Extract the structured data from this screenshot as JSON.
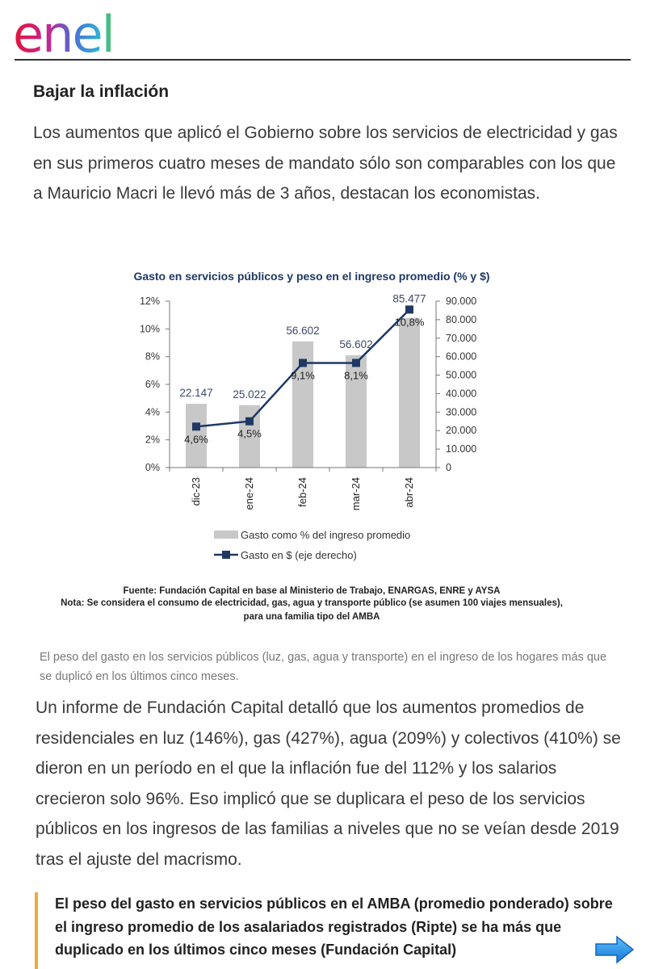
{
  "brand": {
    "logo_text": "enel"
  },
  "article": {
    "heading": "Bajar la inflación",
    "lead": "Los aumentos que aplicó el Gobierno sobre los servicios de electricidad y gas en sus primeros cuatro meses de mandato sólo son comparables con los que a Mauricio Macri le llevó más de 3 años, destacan los economistas.",
    "caption": "El peso del gasto en los servicios públicos (luz, gas, agua y transporte) en el ingreso de los hogares más que se duplicó en los últimos cinco meses.",
    "body": "Un informe de Fundación Capital detalló que los aumentos promedios de residenciales en luz (146%), gas (427%), agua (209%) y colectivos (410%) se dieron en un período en el que la inflación fue del 112% y los salarios crecieron solo 96%. Eso implicó que se duplicara el peso de los servicios públicos en los ingresos de las familias a niveles que no se veían desde 2019 tras el ajuste del macrismo.",
    "quote": "El peso del gasto en servicios públicos en el AMBA (promedio ponderado) sobre el ingreso promedio de los asalariados registrados (Ripte) se ha más que duplicado en los últimos cinco meses (Fundación Capital)"
  },
  "chart_data": {
    "type": "bar",
    "title": "Gasto en servicios públicos y peso en el ingreso promedio (% y $)",
    "categories": [
      "dic-23",
      "ene-24",
      "feb-24",
      "mar-24",
      "abr-24"
    ],
    "series": [
      {
        "name": "Gasto como % del ingreso promedio",
        "type": "bar",
        "axis": "left",
        "values": [
          4.6,
          4.5,
          9.1,
          8.1,
          10.8
        ],
        "labels": [
          "4,6%",
          "4,5%",
          "9,1%",
          "8,1%",
          "10,8%"
        ]
      },
      {
        "name": "Gasto en $ (eje derecho)",
        "type": "line",
        "axis": "right",
        "values": [
          22147,
          25022,
          56602,
          56602,
          85477
        ],
        "labels": [
          "22.147",
          "25.022",
          "56.602",
          "56.602",
          "85.477"
        ]
      }
    ],
    "y_left": {
      "min": 0,
      "max": 12,
      "ticks": [
        0,
        2,
        4,
        6,
        8,
        10,
        12
      ],
      "tick_labels": [
        "0%",
        "2%",
        "4%",
        "6%",
        "8%",
        "10%",
        "12%"
      ]
    },
    "y_right": {
      "min": 0,
      "max": 90000,
      "ticks": [
        0,
        10000,
        20000,
        30000,
        40000,
        50000,
        60000,
        70000,
        80000,
        90000
      ],
      "tick_labels": [
        "0",
        "10.000",
        "20.000",
        "30.000",
        "40.000",
        "50.000",
        "60.000",
        "70.000",
        "80.000",
        "90.000"
      ]
    },
    "colors": {
      "bar": "#c8c8c8",
      "line": "#1f3864",
      "title": "#1f3864",
      "label": "#3a4a6b"
    },
    "source": "Fuente: Fundación Capital en base al Ministerio de Trabajo, ENARGAS, ENRE y AYSA",
    "note_line1": "Nota: Se considera el consumo de electricidad, gas, agua y transporte público (se asumen 100 viajes mensuales),",
    "note_line2": "para una familia tipo del AMBA"
  },
  "colors": {
    "accent_bar": "#f2a93b",
    "arrow": "#1f8fe0",
    "rule": "#333333"
  },
  "icons": {
    "next": "arrow-right-icon"
  }
}
